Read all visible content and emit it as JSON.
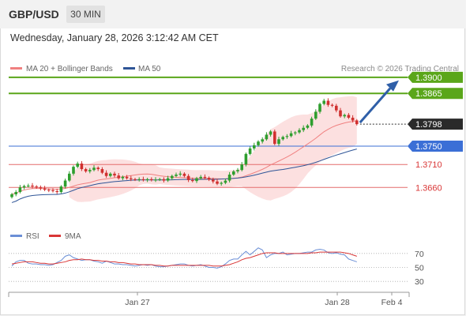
{
  "header": {
    "pair": "GBP/USD",
    "timeframe": "30 MIN"
  },
  "datetime": "Wednesday, January 28, 2026 3:12:42 AM CET",
  "legend": {
    "ma20": "MA 20 + Bollinger Bands",
    "ma50": "MA 50",
    "copyright": "Research © 2026 Trading Central",
    "rsi": "RSI",
    "ma9": "9MA"
  },
  "colors": {
    "ma20": "#f08080",
    "ma50": "#2f5597",
    "bands_fill": "#fbdada",
    "bull": "#2e9e2e",
    "bear": "#d0302f",
    "green_level": "#5aa61a",
    "blue_level": "#3b6fd6",
    "red_level": "#e36c6c",
    "arrow": "#2f5fa8",
    "rsi_line": "#6b8fd6",
    "rsi_ma": "#d93636"
  },
  "chart_data": [
    {
      "type": "candlestick",
      "title": "GBP/USD",
      "timeframe": "30 MIN",
      "x_labels": [
        "Jan 27",
        "Jan 28",
        "Feb 4"
      ],
      "ylim": [
        1.3595,
        1.3905
      ],
      "levels": [
        {
          "label": "1.3900",
          "value": 1.39,
          "kind": "resistance"
        },
        {
          "label": "1.3865",
          "value": 1.3865,
          "kind": "resistance"
        },
        {
          "label": "1.3798",
          "value": 1.3798,
          "kind": "current"
        },
        {
          "label": "1.3750",
          "value": 1.375,
          "kind": "pivot"
        },
        {
          "label": "1.3710",
          "value": 1.371,
          "kind": "support"
        },
        {
          "label": "1.3660",
          "value": 1.366,
          "kind": "support"
        }
      ],
      "candles_close": [
        1.3645,
        1.365,
        1.366,
        1.3663,
        1.3664,
        1.3662,
        1.366,
        1.3658,
        1.3655,
        1.3654,
        1.3652,
        1.365,
        1.3662,
        1.3675,
        1.369,
        1.3705,
        1.3712,
        1.37,
        1.3695,
        1.3698,
        1.3703,
        1.37,
        1.3692,
        1.3685,
        1.369,
        1.3686,
        1.368,
        1.3683,
        1.368,
        1.3678,
        1.3677,
        1.3678,
        1.3676,
        1.3678,
        1.3676,
        1.3677,
        1.3678,
        1.3675,
        1.368,
        1.3685,
        1.3688,
        1.369,
        1.3685,
        1.3676,
        1.3674,
        1.368,
        1.3683,
        1.3681,
        1.3677,
        1.3673,
        1.3668,
        1.367,
        1.3675,
        1.3688,
        1.3695,
        1.3698,
        1.371,
        1.3733,
        1.3745,
        1.3752,
        1.376,
        1.3765,
        1.3775,
        1.3782,
        1.3755,
        1.3765,
        1.377,
        1.3772,
        1.3778,
        1.378,
        1.3785,
        1.379,
        1.3795,
        1.381,
        1.3825,
        1.3842,
        1.3849,
        1.384,
        1.3838,
        1.3828,
        1.3815,
        1.3818,
        1.3812,
        1.3806,
        1.3798
      ],
      "ma20_last": 1.3802,
      "ma50_last": 1.375
    },
    {
      "type": "line",
      "title": "RSI",
      "series": [
        {
          "name": "RSI",
          "values": [
            52,
            58,
            60,
            60,
            56,
            55,
            55,
            54,
            54,
            53,
            54,
            57,
            60,
            66,
            68,
            64,
            62,
            60,
            61,
            61,
            59,
            58,
            56,
            59,
            57,
            55,
            55,
            54,
            54,
            53,
            52,
            53,
            54,
            53,
            54,
            52,
            51,
            51,
            52,
            53,
            54,
            55,
            55,
            53,
            52,
            53,
            54,
            52,
            50,
            50,
            49,
            51,
            55,
            60,
            62,
            62,
            68,
            73,
            68,
            73,
            78,
            75,
            64,
            68,
            70,
            70,
            72,
            68,
            69,
            70,
            70,
            71,
            72,
            72,
            75,
            76,
            75,
            71,
            70,
            71,
            69,
            68,
            62,
            60,
            58
          ]
        },
        {
          "name": "9MA",
          "values": [
            55,
            56,
            57,
            58,
            58,
            58,
            57,
            56,
            56,
            55,
            55,
            56,
            57,
            58,
            60,
            61,
            61,
            62,
            61,
            61,
            60,
            60,
            59,
            59,
            58,
            58,
            57,
            57,
            56,
            55,
            55,
            54,
            54,
            54,
            54,
            53,
            53,
            52,
            52,
            53,
            53,
            53,
            53,
            53,
            53,
            53,
            53,
            53,
            53,
            52,
            52,
            52,
            53,
            54,
            56,
            58,
            61,
            63,
            64,
            66,
            68,
            70,
            71,
            71,
            71,
            70,
            70,
            70,
            70,
            70,
            70,
            70,
            70,
            71,
            71,
            72,
            72,
            72,
            72,
            72,
            72,
            71,
            70,
            68,
            66
          ]
        }
      ],
      "ylim": [
        20,
        80
      ],
      "ticks": [
        "70",
        "50",
        "30"
      ]
    }
  ]
}
